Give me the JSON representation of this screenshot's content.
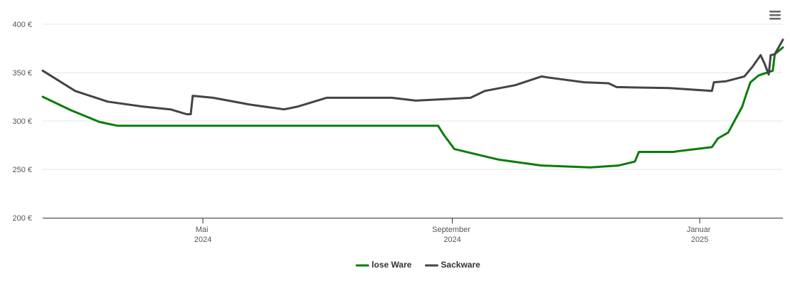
{
  "chart_data": {
    "type": "line",
    "xlim": [
      0,
      365
    ],
    "xticks": [
      {
        "value": 79,
        "label": "Mai 2024"
      },
      {
        "value": 202,
        "label": "September 2024"
      },
      {
        "value": 324,
        "label": "Januar 2025"
      }
    ],
    "ylim": [
      200,
      400
    ],
    "yticks": [
      {
        "value": 200,
        "label": "200 €"
      },
      {
        "value": 250,
        "label": "250 €"
      },
      {
        "value": 300,
        "label": "300 €"
      },
      {
        "value": 350,
        "label": "350 €"
      },
      {
        "value": 400,
        "label": "400 €"
      }
    ],
    "grid": true,
    "legend": "bottom",
    "series": [
      {
        "name": "lose Ware",
        "color": "#0a7d0a",
        "x": [
          0,
          14,
          28,
          37,
          195,
          198,
          203,
          225,
          246,
          270,
          284,
          292,
          294,
          311,
          314,
          330,
          333,
          338,
          345,
          347,
          349,
          353,
          360,
          361,
          365
        ],
        "values": [
          325,
          311,
          299,
          295,
          295,
          285,
          271,
          260,
          254,
          252,
          254,
          258,
          268,
          268,
          269,
          273,
          282,
          288,
          315,
          328,
          340,
          347,
          352,
          369,
          376
        ]
      },
      {
        "name": "Sackware",
        "color": "#444444",
        "x": [
          0,
          16,
          32,
          49,
          63,
          71,
          73,
          74,
          84,
          102,
          119,
          126,
          140,
          172,
          184,
          211,
          218,
          233,
          246,
          249,
          267,
          279,
          283,
          309,
          330,
          331,
          337,
          346,
          350,
          354,
          356,
          358,
          359,
          361,
          365
        ],
        "values": [
          352,
          331,
          320,
          315,
          312,
          307,
          307,
          326,
          324,
          317,
          312,
          315,
          324,
          324,
          321,
          324,
          331,
          337,
          346,
          345,
          340,
          339,
          335,
          334,
          331,
          340,
          341,
          346,
          356,
          368,
          359,
          348,
          368,
          369,
          384
        ]
      }
    ]
  }
}
